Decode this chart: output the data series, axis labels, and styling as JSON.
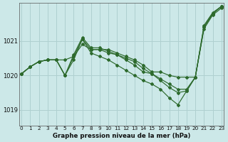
{
  "title": "Graphe pression niveau de la mer (hPa)",
  "background_color": "#cce8e8",
  "grid_color": "#afd0d0",
  "line_color": "#2d6a2d",
  "xlim": [
    -0.3,
    23.3
  ],
  "ylim": [
    1018.55,
    1022.1
  ],
  "yticks": [
    1019,
    1020,
    1021
  ],
  "xticks": [
    0,
    1,
    2,
    3,
    4,
    5,
    6,
    7,
    8,
    9,
    10,
    11,
    12,
    13,
    14,
    15,
    16,
    17,
    18,
    19,
    20,
    21,
    22,
    23
  ],
  "series": [
    [
      1020.05,
      1020.25,
      1020.4,
      1020.45,
      1020.45,
      1020.45,
      1020.55,
      1020.9,
      1020.75,
      1020.75,
      1020.75,
      1020.65,
      1020.55,
      1020.45,
      1020.3,
      1020.1,
      1020.1,
      1020.0,
      1019.95,
      1019.95,
      1019.95,
      1021.35,
      1021.75,
      1021.95
    ],
    [
      1020.05,
      1020.25,
      1020.4,
      1020.45,
      1020.45,
      1020.0,
      1020.55,
      1021.05,
      1020.75,
      1020.75,
      1020.65,
      1020.6,
      1020.5,
      1020.4,
      1020.2,
      1020.05,
      1019.9,
      1019.75,
      1019.6,
      1019.6,
      1019.95,
      1021.4,
      1021.8,
      1022.0
    ],
    [
      1020.05,
      1020.25,
      1020.4,
      1020.45,
      1020.45,
      1020.0,
      1020.6,
      1021.1,
      1020.8,
      1020.8,
      1020.7,
      1020.6,
      1020.45,
      1020.3,
      1020.1,
      1020.05,
      1019.85,
      1019.65,
      1019.5,
      1019.55,
      1019.95,
      1021.45,
      1021.82,
      1022.0
    ],
    [
      1020.05,
      1020.25,
      1020.4,
      1020.45,
      1020.45,
      1020.0,
      1020.45,
      1021.05,
      1020.65,
      1020.55,
      1020.45,
      1020.3,
      1020.15,
      1020.0,
      1019.85,
      1019.75,
      1019.6,
      1019.35,
      1019.15,
      1019.55,
      1019.95,
      1021.4,
      1021.78,
      1022.0
    ]
  ]
}
